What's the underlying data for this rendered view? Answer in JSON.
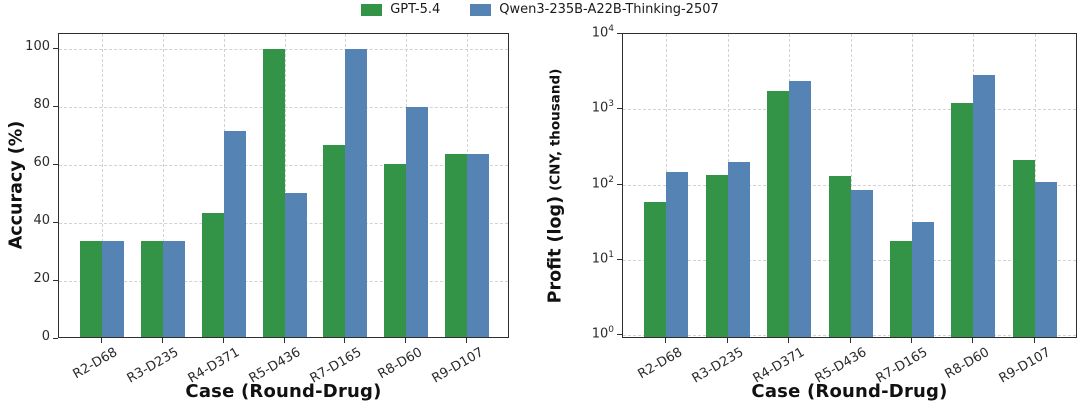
{
  "legend": {
    "items": [
      {
        "label": "GPT-5.4",
        "color": "#339448"
      },
      {
        "label": "Qwen3-235B-A22B-Thinking-2507",
        "color": "#5584b4"
      }
    ]
  },
  "colors": {
    "green_series": "#339448",
    "blue_series": "#5584b4",
    "gridline": "#d2d2d2",
    "spine": "#2e2e2e"
  },
  "chart_data": [
    {
      "type": "bar",
      "title": "",
      "xlabel": "Case (Round-Drug)",
      "ylabel": "Accuracy (%)",
      "scale": "linear",
      "ylim": [
        0,
        105
      ],
      "yticks": [
        0,
        20,
        40,
        60,
        80,
        100
      ],
      "grid": true,
      "legend_position": "top-center",
      "categories": [
        "R2-D68",
        "R3-D235",
        "R4-D371",
        "R5-D436",
        "R7-D165",
        "R8-D60",
        "R9-D107"
      ],
      "series": [
        {
          "name": "GPT-5.4",
          "color": "#339448",
          "values": [
            33.3,
            33.3,
            42.9,
            100,
            66.7,
            60,
            63.6
          ]
        },
        {
          "name": "Qwen3-235B-A22B-Thinking-2507",
          "color": "#5584b4",
          "values": [
            33.3,
            33.3,
            71.4,
            50,
            100,
            80,
            63.6
          ]
        }
      ]
    },
    {
      "type": "bar",
      "title": "",
      "xlabel": "Case (Round-Drug)",
      "ylabel": "Profit (log)",
      "ylabel_unit": "(CNY, thousand)",
      "scale": "log",
      "ylim": [
        1,
        10000
      ],
      "ytick_exponents": [
        0,
        1,
        2,
        3,
        4
      ],
      "grid": true,
      "categories": [
        "R2-D68",
        "R3-D235",
        "R4-D371",
        "R5-D436",
        "R7-D165",
        "R8-D60",
        "R9-D107"
      ],
      "series": [
        {
          "name": "GPT-5.4",
          "color": "#339448",
          "values": [
            57,
            130,
            1750,
            125,
            17,
            1200,
            210
          ]
        },
        {
          "name": "Qwen3-235B-A22B-Thinking-2507",
          "color": "#5584b4",
          "values": [
            145,
            195,
            2350,
            82,
            31,
            2800,
            105
          ]
        }
      ]
    }
  ]
}
